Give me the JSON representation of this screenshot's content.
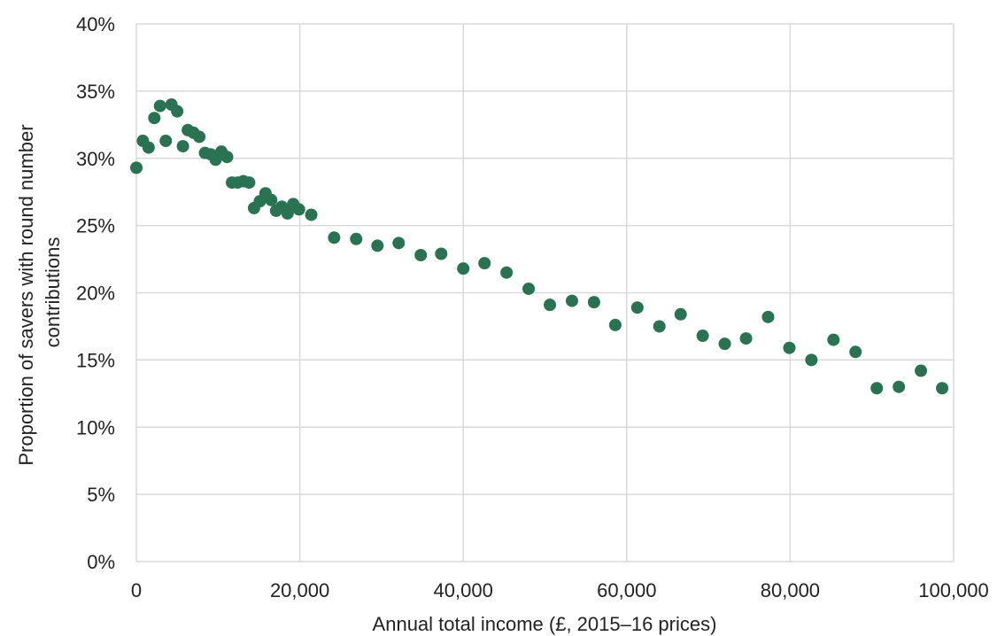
{
  "chart_data": {
    "type": "scatter",
    "title": "",
    "xlabel": "Annual total income (£, 2015–16 prices)",
    "ylabel_lines": [
      "Proportion of savers with round number",
      "contributions"
    ],
    "xlim": [
      0,
      100000
    ],
    "ylim": [
      0,
      40
    ],
    "x_ticks": [
      0,
      20000,
      40000,
      60000,
      80000,
      100000
    ],
    "x_tick_labels": [
      "0",
      "20,000",
      "40,000",
      "60,000",
      "80,000",
      "100,000"
    ],
    "y_ticks": [
      0,
      5,
      10,
      15,
      20,
      25,
      30,
      35,
      40
    ],
    "y_tick_labels": [
      "0%",
      "5%",
      "10%",
      "15%",
      "20%",
      "25%",
      "30%",
      "35%",
      "40%"
    ],
    "grid": true,
    "marker_color": "#2a7352",
    "series": [
      {
        "points": [
          [
            0,
            29.3
          ],
          [
            800,
            31.3
          ],
          [
            1500,
            30.8
          ],
          [
            2200,
            33.0
          ],
          [
            2900,
            33.9
          ],
          [
            3600,
            31.3
          ],
          [
            4300,
            34.0
          ],
          [
            5000,
            33.5
          ],
          [
            5700,
            30.9
          ],
          [
            6300,
            32.1
          ],
          [
            7000,
            31.9
          ],
          [
            7700,
            31.6
          ],
          [
            8400,
            30.4
          ],
          [
            9100,
            30.3
          ],
          [
            9700,
            29.9
          ],
          [
            10400,
            30.5
          ],
          [
            11100,
            30.1
          ],
          [
            11700,
            28.2
          ],
          [
            12400,
            28.2
          ],
          [
            13100,
            28.3
          ],
          [
            13800,
            28.2
          ],
          [
            14400,
            26.3
          ],
          [
            15100,
            26.8
          ],
          [
            15800,
            27.4
          ],
          [
            16500,
            26.9
          ],
          [
            17100,
            26.1
          ],
          [
            17800,
            26.4
          ],
          [
            18500,
            25.9
          ],
          [
            19200,
            26.6
          ],
          [
            19900,
            26.2
          ],
          [
            21400,
            25.8
          ],
          [
            24200,
            24.1
          ],
          [
            26900,
            24.0
          ],
          [
            29500,
            23.5
          ],
          [
            32100,
            23.7
          ],
          [
            34800,
            22.8
          ],
          [
            37300,
            22.9
          ],
          [
            40000,
            21.8
          ],
          [
            42600,
            22.2
          ],
          [
            45300,
            21.5
          ],
          [
            48000,
            20.3
          ],
          [
            50600,
            19.1
          ],
          [
            53300,
            19.4
          ],
          [
            56000,
            19.3
          ],
          [
            58600,
            17.6
          ],
          [
            61300,
            18.9
          ],
          [
            64000,
            17.5
          ],
          [
            66600,
            18.4
          ],
          [
            69300,
            16.8
          ],
          [
            72000,
            16.2
          ],
          [
            74600,
            16.6
          ],
          [
            77300,
            18.2
          ],
          [
            79900,
            15.9
          ],
          [
            82600,
            15.0
          ],
          [
            85300,
            16.5
          ],
          [
            88000,
            15.6
          ],
          [
            90600,
            12.9
          ],
          [
            93300,
            13.0
          ],
          [
            96000,
            14.2
          ],
          [
            98600,
            12.9
          ]
        ]
      }
    ]
  }
}
